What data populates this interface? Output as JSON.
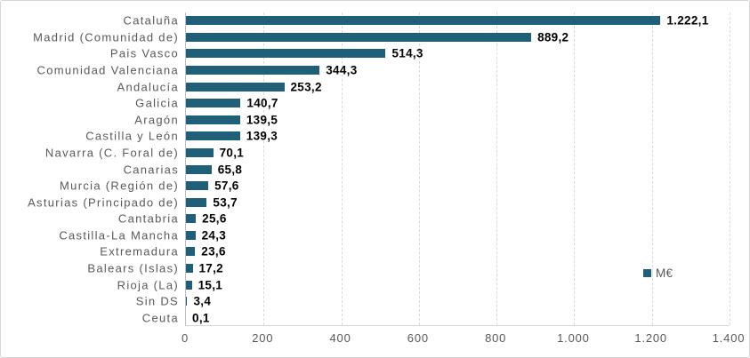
{
  "chart_data": {
    "type": "bar",
    "orientation": "horizontal",
    "title": "",
    "xlabel": "",
    "ylabel": "",
    "xlim": [
      0,
      1400
    ],
    "grid": "vertical-dashed",
    "legend_position": "inside-right",
    "categories": [
      "Cataluña",
      "Madrid (Comunidad de)",
      "Pais Vasco",
      "Comunidad Valenciana",
      "Andalucía",
      "Galicia",
      "Aragón",
      "Castilla y León",
      "Navarra (C. Foral de)",
      "Canarias",
      "Murcia (Región de)",
      "Asturias (Principado de)",
      "Cantabria",
      "Castilla-La Mancha",
      "Extremadura",
      "Balears (Islas)",
      "Rioja (La)",
      "Sin DS",
      "Ceuta"
    ],
    "values": [
      1222.1,
      889.2,
      514.3,
      344.3,
      253.2,
      140.7,
      139.5,
      139.3,
      70.1,
      65.8,
      57.6,
      53.7,
      25.6,
      24.3,
      23.6,
      17.2,
      15.1,
      3.4,
      0.1
    ],
    "value_labels": [
      "1.222,1",
      "889,2",
      "514,3",
      "344,3",
      "253,2",
      "140,7",
      "139,5",
      "139,3",
      "70,1",
      "65,8",
      "57,6",
      "53,7",
      "25,6",
      "24,3",
      "23,6",
      "17,2",
      "15,1",
      "3,4",
      "0,1"
    ],
    "x_tick_values": [
      0,
      200,
      400,
      600,
      800,
      1000,
      1200,
      1400
    ],
    "x_tick_labels": [
      "0",
      "200",
      "400",
      "600",
      "800",
      "1.000",
      "1.200",
      "1.400"
    ]
  },
  "legend": {
    "label": "M€"
  },
  "colors": {
    "bar": "#1f6078",
    "category_label": "#595959",
    "data_label": "#000000",
    "axis_label": "#595959",
    "gridline": "#d9d9d9",
    "axis_line": "#bfbfbf",
    "border": "#d7d7d7",
    "background": "#ffffff"
  }
}
